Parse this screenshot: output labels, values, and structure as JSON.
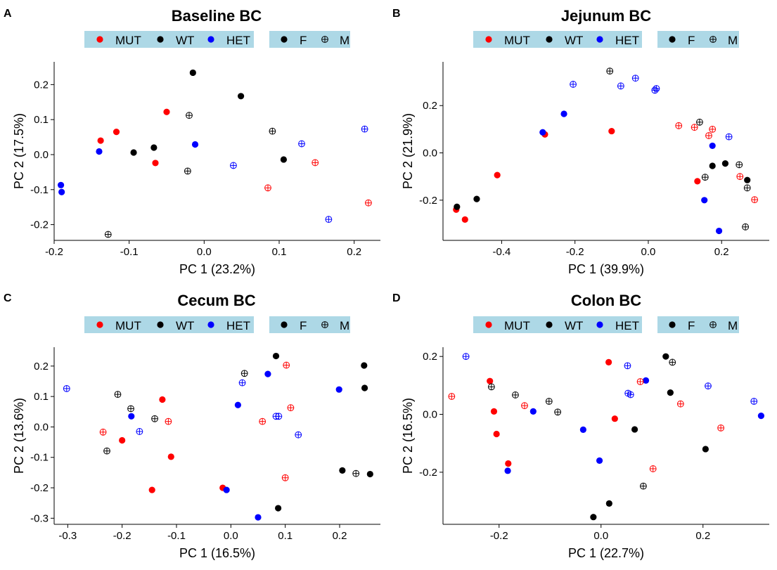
{
  "legend": {
    "bg_color": "#add8e6",
    "genotype": [
      {
        "label": "MUT",
        "color": "#ff0000"
      },
      {
        "label": "WT",
        "color": "#000000"
      },
      {
        "label": "HET",
        "color": "#0000ff"
      }
    ],
    "sex": [
      {
        "label": "F",
        "marker": "filled-circle"
      },
      {
        "label": "M",
        "marker": "circle-plus"
      }
    ]
  },
  "chart_data": [
    {
      "type": "scatter",
      "panel": "A",
      "title": "Baseline BC",
      "xlabel": "PC 1 (23.2%)",
      "ylabel": "PC 2 (17.5%)",
      "xlim": [
        -0.2,
        0.235
      ],
      "ylim": [
        -0.245,
        0.265
      ],
      "xticks": [
        -0.2,
        -0.1,
        0.0,
        0.1,
        0.2
      ],
      "xtick_labels": [
        "-0.2",
        "-0.1",
        "0.0",
        "0.1",
        "0.2"
      ],
      "yticks": [
        -0.2,
        -0.1,
        0.0,
        0.1,
        0.2
      ],
      "ytick_labels": [
        "-0.2",
        "-0.1",
        "0.0",
        "0.1",
        "0.2"
      ],
      "points": [
        {
          "x": -0.138,
          "y": 0.04,
          "g": "MUT",
          "s": "F"
        },
        {
          "x": -0.117,
          "y": 0.065,
          "g": "MUT",
          "s": "F"
        },
        {
          "x": -0.065,
          "y": -0.024,
          "g": "MUT",
          "s": "F"
        },
        {
          "x": -0.05,
          "y": 0.122,
          "g": "MUT",
          "s": "F"
        },
        {
          "x": -0.094,
          "y": 0.006,
          "g": "WT",
          "s": "F"
        },
        {
          "x": -0.067,
          "y": 0.02,
          "g": "WT",
          "s": "F"
        },
        {
          "x": -0.015,
          "y": 0.234,
          "g": "WT",
          "s": "F"
        },
        {
          "x": 0.049,
          "y": 0.167,
          "g": "WT",
          "s": "F"
        },
        {
          "x": 0.106,
          "y": -0.014,
          "g": "WT",
          "s": "F"
        },
        {
          "x": -0.191,
          "y": -0.087,
          "g": "HET",
          "s": "F"
        },
        {
          "x": -0.19,
          "y": -0.107,
          "g": "HET",
          "s": "F"
        },
        {
          "x": -0.14,
          "y": 0.009,
          "g": "HET",
          "s": "F"
        },
        {
          "x": -0.012,
          "y": 0.029,
          "g": "HET",
          "s": "F"
        },
        {
          "x": 0.085,
          "y": -0.095,
          "g": "MUT",
          "s": "M"
        },
        {
          "x": 0.148,
          "y": -0.023,
          "g": "MUT",
          "s": "M"
        },
        {
          "x": 0.219,
          "y": -0.138,
          "g": "MUT",
          "s": "M"
        },
        {
          "x": -0.128,
          "y": -0.228,
          "g": "WT",
          "s": "M"
        },
        {
          "x": -0.02,
          "y": 0.112,
          "g": "WT",
          "s": "M"
        },
        {
          "x": -0.022,
          "y": -0.047,
          "g": "WT",
          "s": "M"
        },
        {
          "x": 0.091,
          "y": 0.067,
          "g": "WT",
          "s": "M"
        },
        {
          "x": 0.039,
          "y": -0.031,
          "g": "HET",
          "s": "M"
        },
        {
          "x": 0.13,
          "y": 0.031,
          "g": "HET",
          "s": "M"
        },
        {
          "x": 0.166,
          "y": -0.185,
          "g": "HET",
          "s": "M"
        },
        {
          "x": 0.214,
          "y": 0.073,
          "g": "HET",
          "s": "M"
        }
      ]
    },
    {
      "type": "scatter",
      "panel": "B",
      "title": "Jejunum BC",
      "xlabel": "PC 1 (39.9%)",
      "ylabel": "PC 2 (21.9%)",
      "xlim": [
        -0.56,
        0.33
      ],
      "ylim": [
        -0.37,
        0.385
      ],
      "xticks": [
        -0.4,
        -0.2,
        0.0,
        0.2
      ],
      "xtick_labels": [
        "-0.4",
        "-0.2",
        "0.0",
        "0.2"
      ],
      "yticks": [
        -0.2,
        0.0,
        0.2
      ],
      "ytick_labels": [
        "-0.2",
        "0.0",
        "0.2"
      ],
      "points": [
        {
          "x": -0.524,
          "y": -0.24,
          "g": "MUT",
          "s": "F"
        },
        {
          "x": -0.5,
          "y": -0.282,
          "g": "MUT",
          "s": "F"
        },
        {
          "x": -0.412,
          "y": -0.094,
          "g": "MUT",
          "s": "F"
        },
        {
          "x": -0.282,
          "y": 0.078,
          "g": "MUT",
          "s": "F"
        },
        {
          "x": -0.1,
          "y": 0.092,
          "g": "MUT",
          "s": "F"
        },
        {
          "x": 0.134,
          "y": -0.12,
          "g": "MUT",
          "s": "F"
        },
        {
          "x": -0.522,
          "y": -0.228,
          "g": "WT",
          "s": "F"
        },
        {
          "x": -0.468,
          "y": -0.195,
          "g": "WT",
          "s": "F"
        },
        {
          "x": 0.175,
          "y": -0.055,
          "g": "WT",
          "s": "F"
        },
        {
          "x": 0.21,
          "y": -0.045,
          "g": "WT",
          "s": "F"
        },
        {
          "x": 0.27,
          "y": -0.115,
          "g": "WT",
          "s": "F"
        },
        {
          "x": -0.288,
          "y": 0.087,
          "g": "HET",
          "s": "F"
        },
        {
          "x": -0.23,
          "y": 0.165,
          "g": "HET",
          "s": "F"
        },
        {
          "x": 0.175,
          "y": 0.03,
          "g": "HET",
          "s": "F"
        },
        {
          "x": 0.153,
          "y": -0.2,
          "g": "HET",
          "s": "F"
        },
        {
          "x": 0.193,
          "y": -0.33,
          "g": "HET",
          "s": "F"
        },
        {
          "x": 0.083,
          "y": 0.115,
          "g": "MUT",
          "s": "M"
        },
        {
          "x": 0.126,
          "y": 0.108,
          "g": "MUT",
          "s": "M"
        },
        {
          "x": 0.165,
          "y": 0.073,
          "g": "MUT",
          "s": "M"
        },
        {
          "x": 0.175,
          "y": 0.1,
          "g": "MUT",
          "s": "M"
        },
        {
          "x": 0.25,
          "y": -0.1,
          "g": "MUT",
          "s": "M"
        },
        {
          "x": 0.29,
          "y": -0.198,
          "g": "MUT",
          "s": "M"
        },
        {
          "x": -0.105,
          "y": 0.346,
          "g": "WT",
          "s": "M"
        },
        {
          "x": 0.14,
          "y": 0.13,
          "g": "WT",
          "s": "M"
        },
        {
          "x": 0.155,
          "y": -0.103,
          "g": "WT",
          "s": "M"
        },
        {
          "x": 0.248,
          "y": -0.05,
          "g": "WT",
          "s": "M"
        },
        {
          "x": 0.27,
          "y": -0.148,
          "g": "WT",
          "s": "M"
        },
        {
          "x": 0.265,
          "y": -0.313,
          "g": "WT",
          "s": "M"
        },
        {
          "x": -0.205,
          "y": 0.29,
          "g": "HET",
          "s": "M"
        },
        {
          "x": -0.075,
          "y": 0.283,
          "g": "HET",
          "s": "M"
        },
        {
          "x": -0.035,
          "y": 0.316,
          "g": "HET",
          "s": "M"
        },
        {
          "x": 0.018,
          "y": 0.265,
          "g": "HET",
          "s": "M"
        },
        {
          "x": 0.022,
          "y": 0.272,
          "g": "HET",
          "s": "M"
        },
        {
          "x": 0.22,
          "y": 0.068,
          "g": "HET",
          "s": "M"
        }
      ]
    },
    {
      "type": "scatter",
      "panel": "C",
      "title": "Cecum BC",
      "xlabel": "PC 1 (16.5%)",
      "ylabel": "PC 2 (13.6%)",
      "xlim": [
        -0.325,
        0.275
      ],
      "ylim": [
        -0.32,
        0.262
      ],
      "xticks": [
        -0.3,
        -0.2,
        -0.1,
        0.0,
        0.1,
        0.2
      ],
      "xtick_labels": [
        "-0.3",
        "-0.2",
        "-0.1",
        "0.0",
        "0.1",
        "0.2"
      ],
      "yticks": [
        -0.3,
        -0.2,
        -0.1,
        0.0,
        0.1,
        0.2
      ],
      "ytick_labels": [
        "-0.3",
        "-0.2",
        "-0.1",
        "0.0",
        "0.1",
        "0.2"
      ],
      "points": [
        {
          "x": -0.126,
          "y": 0.09,
          "g": "MUT",
          "s": "F"
        },
        {
          "x": -0.2,
          "y": -0.044,
          "g": "MUT",
          "s": "F"
        },
        {
          "x": -0.11,
          "y": -0.098,
          "g": "MUT",
          "s": "F"
        },
        {
          "x": -0.145,
          "y": -0.207,
          "g": "MUT",
          "s": "F"
        },
        {
          "x": -0.015,
          "y": -0.2,
          "g": "MUT",
          "s": "F"
        },
        {
          "x": 0.083,
          "y": 0.233,
          "g": "WT",
          "s": "F"
        },
        {
          "x": 0.245,
          "y": 0.202,
          "g": "WT",
          "s": "F"
        },
        {
          "x": 0.246,
          "y": 0.128,
          "g": "WT",
          "s": "F"
        },
        {
          "x": 0.205,
          "y": -0.143,
          "g": "WT",
          "s": "F"
        },
        {
          "x": 0.256,
          "y": -0.155,
          "g": "WT",
          "s": "F"
        },
        {
          "x": 0.087,
          "y": -0.267,
          "g": "WT",
          "s": "F"
        },
        {
          "x": -0.183,
          "y": 0.035,
          "g": "HET",
          "s": "F"
        },
        {
          "x": 0.013,
          "y": 0.072,
          "g": "HET",
          "s": "F"
        },
        {
          "x": 0.068,
          "y": 0.174,
          "g": "HET",
          "s": "F"
        },
        {
          "x": 0.199,
          "y": 0.123,
          "g": "HET",
          "s": "F"
        },
        {
          "x": -0.008,
          "y": -0.207,
          "g": "HET",
          "s": "F"
        },
        {
          "x": 0.05,
          "y": -0.297,
          "g": "HET",
          "s": "F"
        },
        {
          "x": -0.235,
          "y": -0.017,
          "g": "MUT",
          "s": "M"
        },
        {
          "x": -0.115,
          "y": 0.018,
          "g": "MUT",
          "s": "M"
        },
        {
          "x": 0.058,
          "y": 0.018,
          "g": "MUT",
          "s": "M"
        },
        {
          "x": 0.102,
          "y": 0.203,
          "g": "MUT",
          "s": "M"
        },
        {
          "x": 0.11,
          "y": 0.063,
          "g": "MUT",
          "s": "M"
        },
        {
          "x": 0.1,
          "y": -0.167,
          "g": "MUT",
          "s": "M"
        },
        {
          "x": -0.208,
          "y": 0.107,
          "g": "WT",
          "s": "M"
        },
        {
          "x": -0.184,
          "y": 0.06,
          "g": "WT",
          "s": "M"
        },
        {
          "x": -0.14,
          "y": 0.027,
          "g": "WT",
          "s": "M"
        },
        {
          "x": -0.228,
          "y": -0.079,
          "g": "WT",
          "s": "M"
        },
        {
          "x": 0.025,
          "y": 0.176,
          "g": "WT",
          "s": "M"
        },
        {
          "x": 0.23,
          "y": -0.153,
          "g": "WT",
          "s": "M"
        },
        {
          "x": -0.302,
          "y": 0.126,
          "g": "HET",
          "s": "M"
        },
        {
          "x": -0.168,
          "y": -0.015,
          "g": "HET",
          "s": "M"
        },
        {
          "x": 0.021,
          "y": 0.145,
          "g": "HET",
          "s": "M"
        },
        {
          "x": 0.083,
          "y": 0.035,
          "g": "HET",
          "s": "M"
        },
        {
          "x": 0.088,
          "y": 0.035,
          "g": "HET",
          "s": "M"
        },
        {
          "x": 0.124,
          "y": -0.026,
          "g": "HET",
          "s": "M"
        }
      ]
    },
    {
      "type": "scatter",
      "panel": "D",
      "title": "Colon BC",
      "xlabel": "PC 1 (22.7%)",
      "ylabel": "PC 2 (16.5%)",
      "xlim": [
        -0.31,
        0.33
      ],
      "ylim": [
        -0.38,
        0.232
      ],
      "xticks": [
        -0.2,
        0.0,
        0.2
      ],
      "xtick_labels": [
        "-0.2",
        "0.0",
        "0.2"
      ],
      "yticks": [
        -0.2,
        0.0,
        0.2
      ],
      "ytick_labels": [
        "-0.2",
        "0.0",
        "0.2"
      ],
      "points": [
        {
          "x": -0.218,
          "y": 0.115,
          "g": "MUT",
          "s": "F"
        },
        {
          "x": -0.21,
          "y": 0.01,
          "g": "MUT",
          "s": "F"
        },
        {
          "x": -0.205,
          "y": -0.068,
          "g": "MUT",
          "s": "F"
        },
        {
          "x": -0.182,
          "y": -0.17,
          "g": "MUT",
          "s": "F"
        },
        {
          "x": 0.015,
          "y": 0.18,
          "g": "MUT",
          "s": "F"
        },
        {
          "x": 0.027,
          "y": -0.015,
          "g": "MUT",
          "s": "F"
        },
        {
          "x": 0.127,
          "y": 0.2,
          "g": "WT",
          "s": "F"
        },
        {
          "x": 0.136,
          "y": 0.075,
          "g": "WT",
          "s": "F"
        },
        {
          "x": 0.066,
          "y": -0.052,
          "g": "WT",
          "s": "F"
        },
        {
          "x": 0.205,
          "y": -0.12,
          "g": "WT",
          "s": "F"
        },
        {
          "x": 0.016,
          "y": -0.308,
          "g": "WT",
          "s": "F"
        },
        {
          "x": -0.015,
          "y": -0.355,
          "g": "WT",
          "s": "F"
        },
        {
          "x": -0.183,
          "y": -0.195,
          "g": "HET",
          "s": "F"
        },
        {
          "x": -0.133,
          "y": 0.01,
          "g": "HET",
          "s": "F"
        },
        {
          "x": -0.035,
          "y": -0.053,
          "g": "HET",
          "s": "F"
        },
        {
          "x": -0.003,
          "y": -0.16,
          "g": "HET",
          "s": "F"
        },
        {
          "x": 0.088,
          "y": 0.117,
          "g": "HET",
          "s": "F"
        },
        {
          "x": 0.314,
          "y": -0.005,
          "g": "HET",
          "s": "F"
        },
        {
          "x": -0.293,
          "y": 0.062,
          "g": "MUT",
          "s": "M"
        },
        {
          "x": -0.15,
          "y": 0.03,
          "g": "MUT",
          "s": "M"
        },
        {
          "x": 0.077,
          "y": 0.113,
          "g": "MUT",
          "s": "M"
        },
        {
          "x": 0.156,
          "y": 0.036,
          "g": "MUT",
          "s": "M"
        },
        {
          "x": 0.235,
          "y": -0.047,
          "g": "MUT",
          "s": "M"
        },
        {
          "x": 0.102,
          "y": -0.188,
          "g": "MUT",
          "s": "M"
        },
        {
          "x": -0.215,
          "y": 0.095,
          "g": "WT",
          "s": "M"
        },
        {
          "x": -0.168,
          "y": 0.067,
          "g": "WT",
          "s": "M"
        },
        {
          "x": -0.102,
          "y": 0.045,
          "g": "WT",
          "s": "M"
        },
        {
          "x": -0.085,
          "y": 0.008,
          "g": "WT",
          "s": "M"
        },
        {
          "x": 0.14,
          "y": 0.18,
          "g": "WT",
          "s": "M"
        },
        {
          "x": 0.083,
          "y": -0.248,
          "g": "WT",
          "s": "M"
        },
        {
          "x": -0.265,
          "y": 0.2,
          "g": "HET",
          "s": "M"
        },
        {
          "x": 0.052,
          "y": 0.168,
          "g": "HET",
          "s": "M"
        },
        {
          "x": 0.053,
          "y": 0.073,
          "g": "HET",
          "s": "M"
        },
        {
          "x": 0.058,
          "y": 0.068,
          "g": "HET",
          "s": "M"
        },
        {
          "x": 0.21,
          "y": 0.098,
          "g": "HET",
          "s": "M"
        },
        {
          "x": 0.3,
          "y": 0.045,
          "g": "HET",
          "s": "M"
        }
      ]
    }
  ]
}
